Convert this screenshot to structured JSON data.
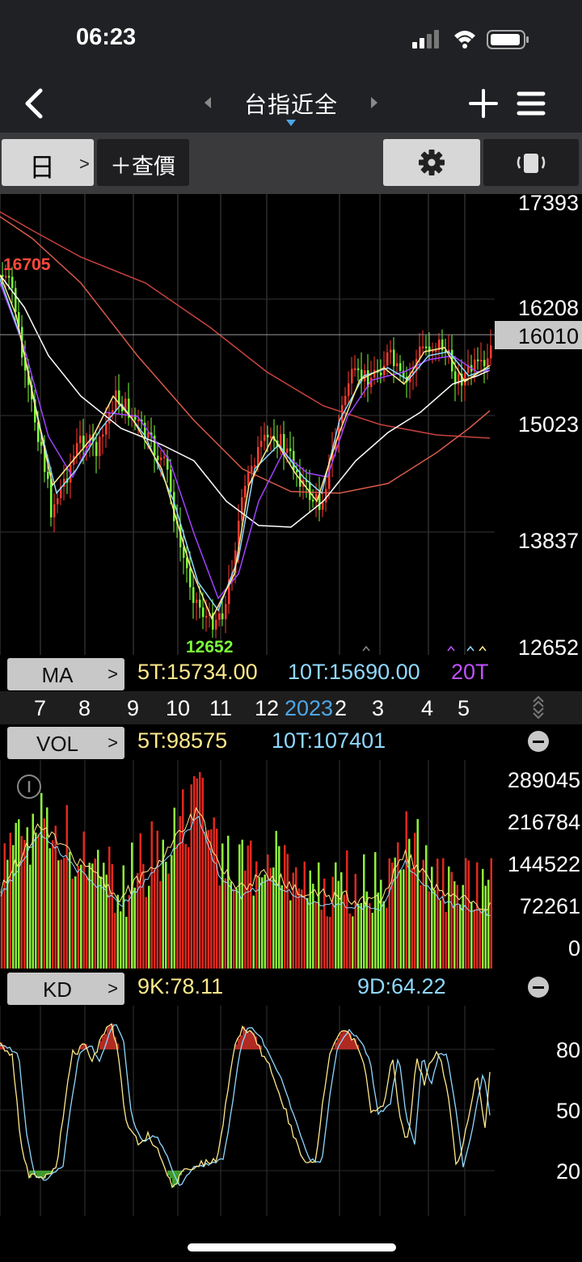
{
  "status_bar": {
    "time": "06:23"
  },
  "nav": {
    "title": "台指近全",
    "back_icon": "chevron-left-icon",
    "add_icon": "plus-icon",
    "menu_icon": "hamburger-icon"
  },
  "toolbar": {
    "period_label": "日",
    "quote_label": "＋查價",
    "settings_icon": "gear-icon",
    "rotate_icon": "rotate-screen-icon"
  },
  "price_chart": {
    "axis_labels": [
      "17393",
      "16208",
      "15023",
      "13837",
      "12652"
    ],
    "current_price": "16010",
    "high_label": "16705",
    "low_label": "12652",
    "colors": {
      "up": "#ff3b30",
      "down": "#7cff3a",
      "ma5": "#ffe98a",
      "ma10": "#8fd8ff",
      "ma20": "#a042ff",
      "ma60": "#ffffff",
      "ma120": "#d85a4a",
      "ma240": "#c8423e"
    }
  },
  "ma_bar": {
    "label": "MA",
    "ma5": "5T:15734.00",
    "ma10": "10T:15690.00",
    "ma20": "20T"
  },
  "date_axis": {
    "months": [
      "7",
      "8",
      "9",
      "10",
      "11",
      "12",
      "2",
      "3",
      "4",
      "5"
    ],
    "year": "2023"
  },
  "volume": {
    "label": "VOL",
    "ma5": "5T:98575",
    "ma10": "10T:107401",
    "axis_labels": [
      "289045",
      "216784",
      "144522",
      "72261",
      "0"
    ]
  },
  "kd": {
    "label": "KD",
    "k": "9K:78.11",
    "d": "9D:64.22",
    "axis_labels": [
      "80",
      "50",
      "20"
    ]
  }
}
